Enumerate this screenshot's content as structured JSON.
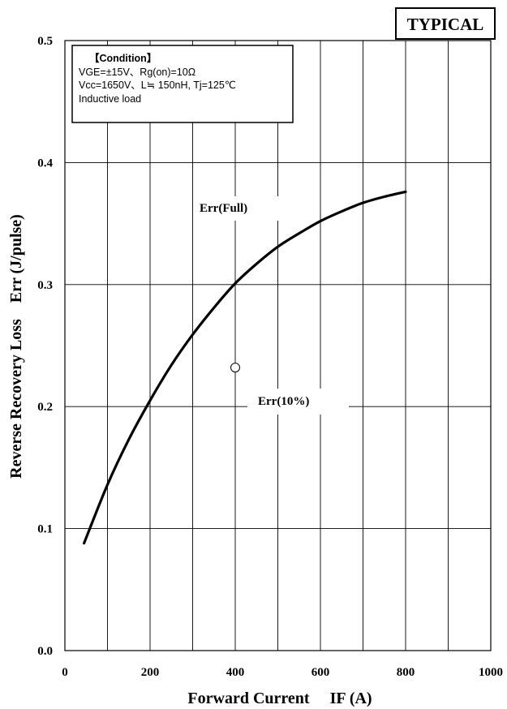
{
  "badge": "TYPICAL",
  "condition": {
    "title": "【Condition】",
    "lines": [
      "VGE=±15V、Rg(on)=10Ω",
      "Vcc=1650V、L≒ 150nH, Tj=125℃",
      "Inductive load"
    ]
  },
  "chart_data": {
    "type": "line",
    "xlabel": "Forward Current     IF (A)",
    "ylabel": "Reverse Recovery Loss    Err (J/pulse)",
    "xlim": [
      0,
      1000
    ],
    "ylim": [
      0,
      0.5
    ],
    "x_ticks": [
      "0",
      "200",
      "400",
      "600",
      "800",
      "1000"
    ],
    "y_ticks": [
      "0.0",
      "0.1",
      "0.2",
      "0.3",
      "0.4",
      "0.5"
    ],
    "grid": true,
    "series": [
      {
        "name": "Err(Full)",
        "style": "solid",
        "x": [
          45,
          100,
          150,
          200,
          250,
          300,
          350,
          400,
          450,
          500,
          550,
          600,
          650,
          700,
          750,
          800
        ],
        "y": [
          0.088,
          0.136,
          0.173,
          0.205,
          0.234,
          0.259,
          0.281,
          0.301,
          0.317,
          0.331,
          0.342,
          0.352,
          0.36,
          0.367,
          0.372,
          0.376
        ]
      },
      {
        "name": "Err(10%)",
        "style": "marker",
        "x": [
          400
        ],
        "y": [
          0.232
        ]
      }
    ]
  },
  "colors": {
    "line": "#000000",
    "grid": "#000000",
    "background": "#ffffff"
  }
}
